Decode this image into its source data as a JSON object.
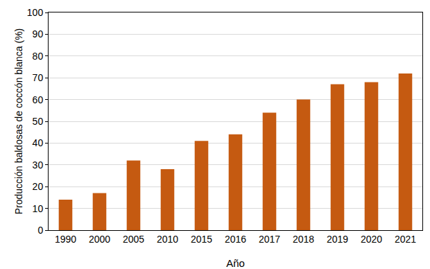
{
  "chart_data": {
    "type": "bar",
    "x_label": "Año",
    "y_label": "Producción baldosas de coccón blanca (%)",
    "categories": [
      "1990",
      "2000",
      "2005",
      "2010",
      "2015",
      "2016",
      "2017",
      "2018",
      "2019",
      "2020",
      "2021"
    ],
    "values": [
      14,
      17,
      32,
      28,
      41,
      44,
      54,
      60,
      67,
      68,
      72
    ],
    "color": "#c55a11",
    "ylim": [
      0,
      100
    ],
    "yticks": [
      0,
      10,
      20,
      30,
      40,
      50,
      60,
      70,
      80,
      90,
      100
    ],
    "grid": true
  }
}
